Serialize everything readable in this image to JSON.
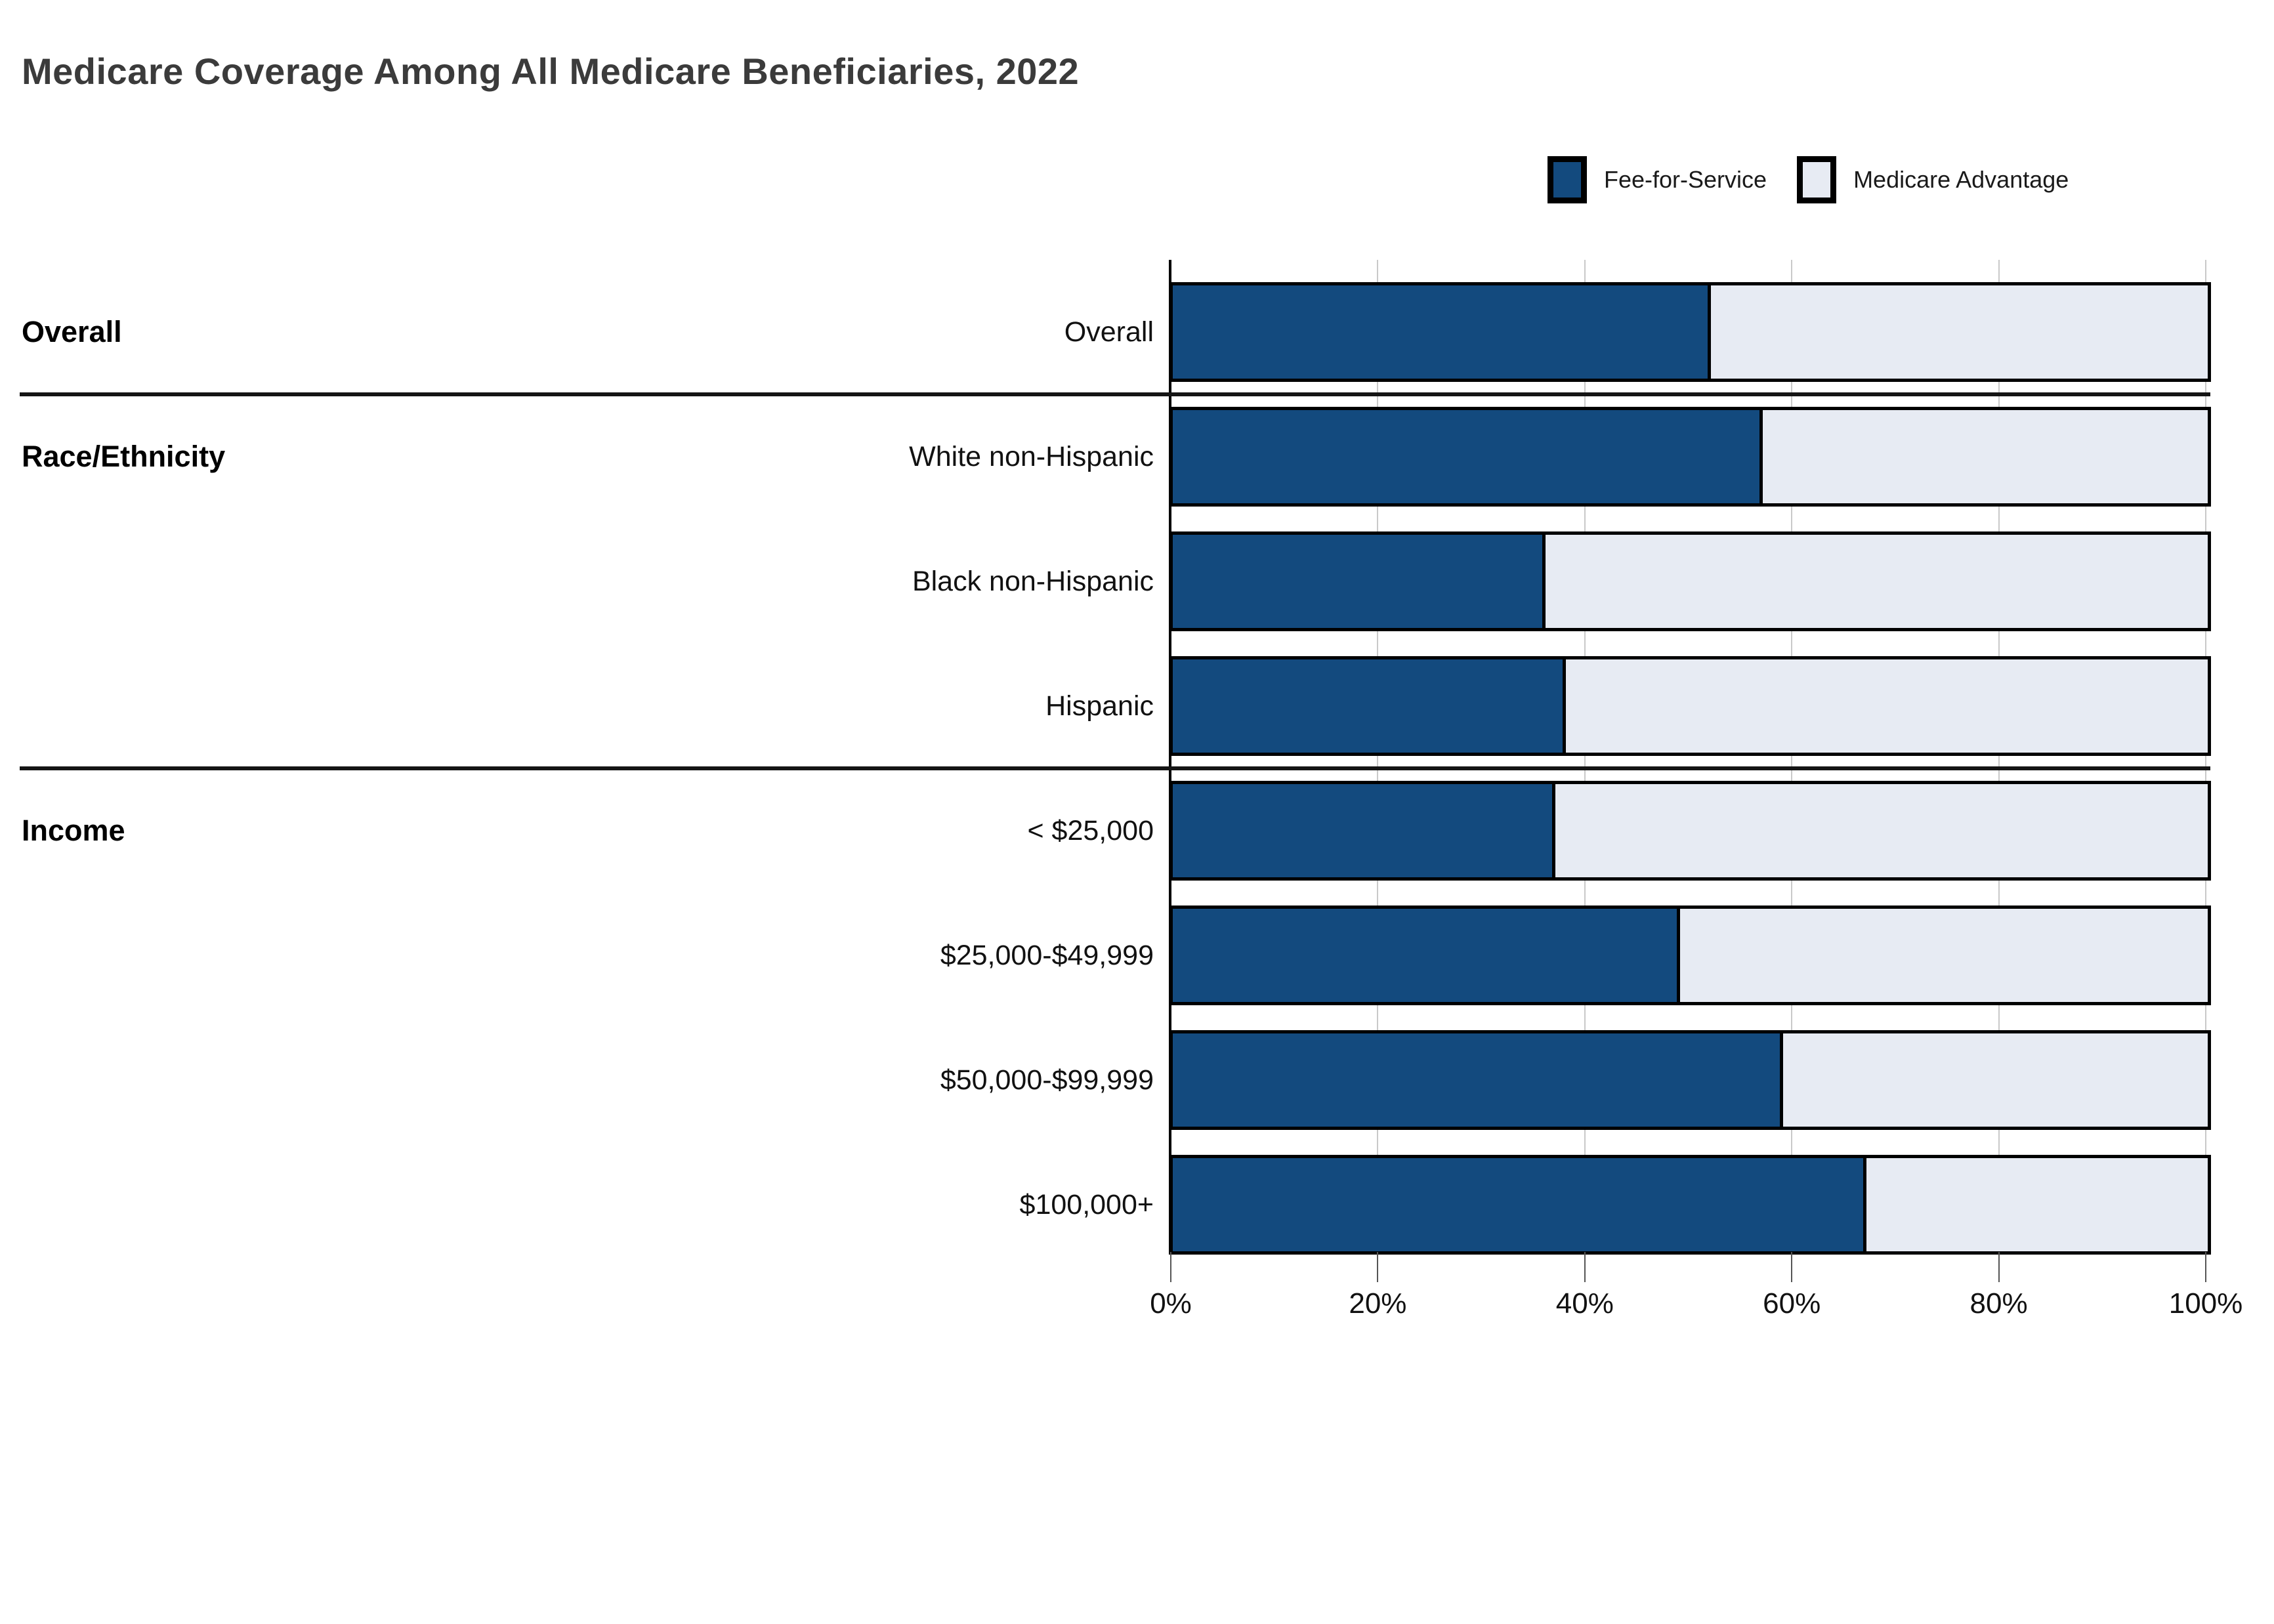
{
  "title": "Medicare Coverage Among All Medicare Beneficiaries, 2022",
  "legend": [
    {
      "label": "Fee-for-Service",
      "color": "#134A7E"
    },
    {
      "label": "Medicare Advantage",
      "color": "#E7EBF3"
    }
  ],
  "colors": {
    "fee_for_service": "#134A7E",
    "medicare_advantage": "#E7EBF3",
    "bar_border": "#000000",
    "title_text": "#3b3b3b",
    "gridline": "#c9c9c9"
  },
  "chart_data": {
    "type": "bar",
    "stacked": true,
    "orientation": "horizontal",
    "title": "Medicare Coverage Among All Medicare Beneficiaries, 2022",
    "categories": [
      "Overall",
      "White non-Hispanic",
      "Black non-Hispanic",
      "Hispanic",
      "< $25,000",
      "$25,000-$49,999",
      "$50,000-$99,999",
      "$100,000+"
    ],
    "groups": [
      {
        "label": "Overall",
        "rows": [
          0
        ]
      },
      {
        "label": "Race/Ethnicity",
        "rows": [
          1,
          2,
          3
        ]
      },
      {
        "label": "Income",
        "rows": [
          4,
          5,
          6,
          7
        ]
      }
    ],
    "series": [
      {
        "name": "Fee-for-Service",
        "values": [
          52,
          57,
          36,
          38,
          37,
          49,
          59,
          67
        ]
      },
      {
        "name": "Medicare Advantage",
        "values": [
          48,
          43,
          64,
          62,
          63,
          51,
          41,
          33
        ]
      }
    ],
    "xlabel": "",
    "ylabel": "",
    "xlim": [
      0,
      100
    ],
    "x_tick_values": [
      0,
      20,
      40,
      60,
      80,
      100
    ],
    "x_ticks": [
      "0%",
      "20%",
      "40%",
      "60%",
      "80%",
      "100%"
    ],
    "grid": "vertical",
    "legend_position": "top-right",
    "units": "percent"
  }
}
